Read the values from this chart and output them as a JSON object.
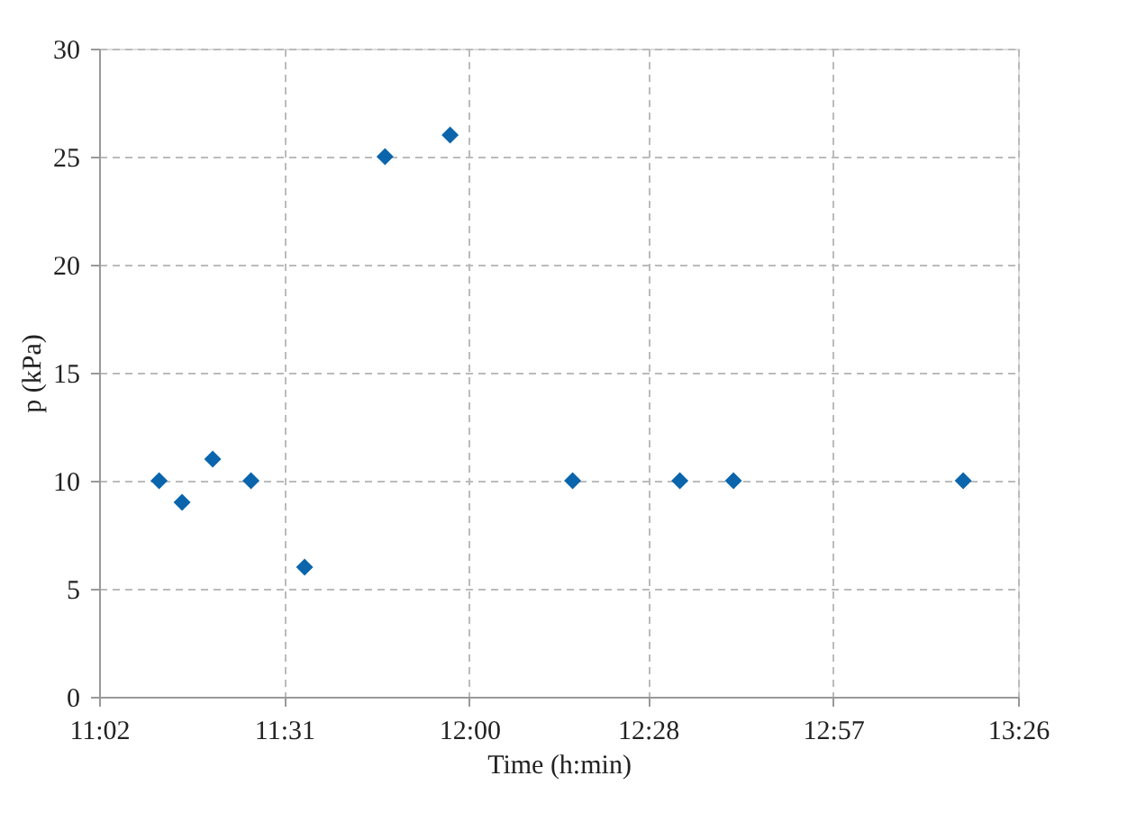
{
  "chart_data": {
    "type": "scatter",
    "xlabel": "Time  (h:min)",
    "ylabel": "p  (kPa)",
    "x": [
      11.19,
      11.25,
      11.33,
      11.43,
      11.57,
      11.78,
      11.95,
      12.27,
      12.55,
      12.69,
      13.29
    ],
    "series": [
      {
        "color": "#0a65ac",
        "values": [
          10,
          9,
          11,
          10,
          6,
          25,
          26,
          10,
          10,
          10,
          10
        ]
      }
    ],
    "xlim": [
      11.0333,
      13.4333
    ],
    "xticks": [
      {
        "value": 11.0333,
        "label": "11:02"
      },
      {
        "value": 11.5167,
        "label": "11:31"
      },
      {
        "value": 12.0,
        "label": "12:00"
      },
      {
        "value": 12.4667,
        "label": "12:28"
      },
      {
        "value": 12.95,
        "label": "12:57"
      },
      {
        "value": 13.4333,
        "label": "13:26"
      }
    ],
    "ylim": [
      0,
      30
    ],
    "yticks": [
      0,
      5,
      10,
      15,
      20,
      25,
      30
    ],
    "grid": true,
    "marker": "diamond"
  }
}
